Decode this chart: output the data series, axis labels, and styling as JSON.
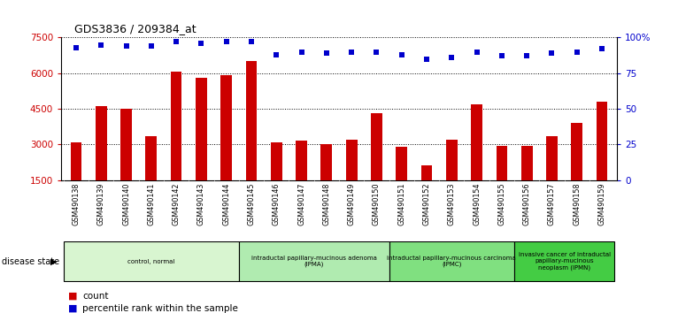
{
  "title": "GDS3836 / 209384_at",
  "samples": [
    "GSM490138",
    "GSM490139",
    "GSM490140",
    "GSM490141",
    "GSM490142",
    "GSM490143",
    "GSM490144",
    "GSM490145",
    "GSM490146",
    "GSM490147",
    "GSM490148",
    "GSM490149",
    "GSM490150",
    "GSM490151",
    "GSM490152",
    "GSM490153",
    "GSM490154",
    "GSM490155",
    "GSM490156",
    "GSM490157",
    "GSM490158",
    "GSM490159"
  ],
  "counts": [
    3100,
    4600,
    4500,
    3350,
    6050,
    5800,
    5900,
    6500,
    3100,
    3150,
    3000,
    3200,
    4300,
    2900,
    2100,
    3200,
    4700,
    2950,
    2950,
    3350,
    3900,
    4800
  ],
  "percentile_ranks": [
    93,
    95,
    94,
    94,
    97,
    96,
    97,
    97,
    88,
    90,
    89,
    90,
    90,
    88,
    85,
    86,
    90,
    87,
    87,
    89,
    90,
    92
  ],
  "bar_color": "#cc0000",
  "dot_color": "#0000cc",
  "ylim_left": [
    1500,
    7500
  ],
  "ylim_right": [
    0,
    100
  ],
  "yticks_left": [
    1500,
    3000,
    4500,
    6000,
    7500
  ],
  "yticks_right": [
    0,
    25,
    50,
    75,
    100
  ],
  "groups": [
    {
      "label": "control, normal",
      "start": 0,
      "end": 7,
      "color": "#d8f5d0"
    },
    {
      "label": "intraductal papillary-mucinous adenoma\n(IPMA)",
      "start": 7,
      "end": 13,
      "color": "#b0ebb0"
    },
    {
      "label": "intraductal papillary-mucinous carcinoma\n(IPMC)",
      "start": 13,
      "end": 18,
      "color": "#80e080"
    },
    {
      "label": "invasive cancer of intraductal\npapillary-mucinous\nneoplasm (IPMN)",
      "start": 18,
      "end": 22,
      "color": "#44cc44"
    }
  ],
  "background_color": "#ffffff",
  "bar_width": 0.45,
  "dot_size": 18,
  "disease_state_label": "disease state",
  "xlabel_gray": "#cccccc"
}
